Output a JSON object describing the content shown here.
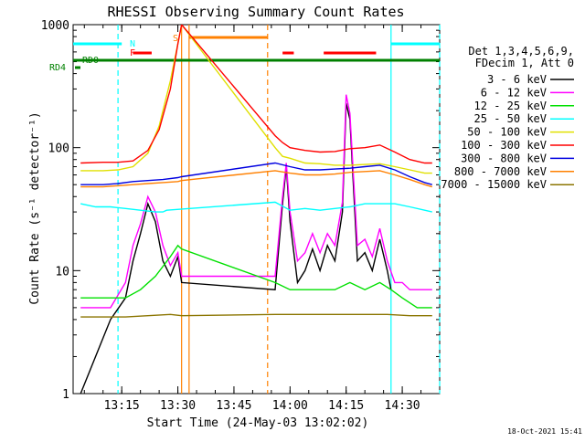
{
  "colors": {
    "background": "#ffffff",
    "axis": "#000000",
    "s_3_6": "#000000",
    "s_6_12": "#ff00ff",
    "s_12_25": "#00e000",
    "s_25_50": "#00ffff",
    "s_50_100": "#e0e000",
    "s_100_300": "#ff0000",
    "s_300_800": "#0000e0",
    "s_800_7000": "#ff8000",
    "s_7000_15000": "#8b7500",
    "flag_n": "#00ffff",
    "flag_f": "#ff0000",
    "flag_s": "#ff8000",
    "flag_rd": "#008000"
  },
  "chart_data": {
    "type": "line",
    "title": "RHESSI Observing Summary Count Rates",
    "xlabel": "Start Time (24-May-03 13:02:02)",
    "ylabel": "Count Rate (s⁻¹ detector⁻¹)",
    "yscale": "log",
    "xlim": [
      "13:02",
      "14:40"
    ],
    "ylim": [
      1,
      1000
    ],
    "xticks": [
      "13:15",
      "13:30",
      "13:45",
      "14:00",
      "14:15",
      "14:30"
    ],
    "yticks": [
      "1",
      "10",
      "100",
      "1000"
    ],
    "legend_placement": "right",
    "legend_header": [
      "Det 1,3,4,5,6,9,",
      "FDecim 1, Att 0"
    ],
    "footer_date": "18-Oct-2021 15:41",
    "flags": {
      "n_label": "N",
      "f_label": "F",
      "s_label": "S",
      "rd0_label": "RD0",
      "rd4_label": "RD4",
      "n_intervals": [
        [
          "13:02",
          "13:15"
        ],
        [
          "14:27",
          "14:40"
        ]
      ],
      "f_intervals": [
        [
          "13:18",
          "13:23"
        ],
        [
          "13:58",
          "14:01"
        ],
        [
          "14:09",
          "14:23"
        ]
      ],
      "s_intervals": [
        [
          "13:33",
          "13:54"
        ]
      ],
      "rd0_interval": [
        "13:02",
        "14:40"
      ]
    },
    "vlines": [
      {
        "t": "13:14",
        "color": "#00ffff",
        "style": "dashed"
      },
      {
        "t": "13:31",
        "color": "#ff8000",
        "style": "solid"
      },
      {
        "t": "13:33",
        "color": "#ff8000",
        "style": "solid"
      },
      {
        "t": "13:54",
        "color": "#ff8000",
        "style": "dashed"
      },
      {
        "t": "14:27",
        "color": "#00ffff",
        "style": "solid"
      },
      {
        "t": "14:40",
        "color": "#00ffff",
        "style": "dashed"
      }
    ],
    "series": [
      {
        "name": "3 - 6 keV",
        "key": "s_3_6",
        "x": [
          "13:04",
          "13:12",
          "13:16",
          "13:18",
          "13:20",
          "13:22",
          "13:24",
          "13:26",
          "13:28",
          "13:30",
          "13:31",
          "13:56",
          "13:58",
          "13:59",
          "14:00",
          "14:02",
          "14:04",
          "14:06",
          "14:08",
          "14:10",
          "14:12",
          "14:14",
          "14:15",
          "14:16",
          "14:18",
          "14:20",
          "14:22",
          "14:24",
          "14:26",
          "14:27"
        ],
        "y": [
          1,
          4,
          6,
          12,
          20,
          35,
          25,
          12,
          9,
          13,
          8,
          7,
          35,
          70,
          25,
          8,
          10,
          15,
          10,
          16,
          12,
          30,
          230,
          170,
          12,
          14,
          10,
          18,
          10,
          7
        ]
      },
      {
        "name": "6 - 12 keV",
        "key": "s_6_12",
        "x": [
          "13:04",
          "13:12",
          "13:16",
          "13:18",
          "13:20",
          "13:22",
          "13:24",
          "13:26",
          "13:28",
          "13:30",
          "13:31",
          "13:56",
          "13:58",
          "13:59",
          "14:00",
          "14:02",
          "14:04",
          "14:06",
          "14:08",
          "14:10",
          "14:12",
          "14:14",
          "14:15",
          "14:16",
          "14:18",
          "14:20",
          "14:22",
          "14:24",
          "14:26",
          "14:28",
          "14:30",
          "14:32",
          "14:34",
          "14:36",
          "14:38"
        ],
        "y": [
          5,
          5,
          8,
          16,
          24,
          40,
          30,
          16,
          11,
          14,
          9,
          9,
          40,
          75,
          30,
          12,
          14,
          20,
          14,
          20,
          16,
          36,
          270,
          190,
          16,
          18,
          13,
          22,
          12,
          8,
          8,
          7,
          7,
          7,
          7
        ]
      },
      {
        "name": "12 - 25 keV",
        "key": "s_12_25",
        "x": [
          "13:04",
          "13:12",
          "13:16",
          "13:20",
          "13:24",
          "13:28",
          "13:30",
          "13:31",
          "13:56",
          "14:00",
          "14:04",
          "14:08",
          "14:12",
          "14:16",
          "14:20",
          "14:24",
          "14:27",
          "14:30",
          "14:34",
          "14:38"
        ],
        "y": [
          6,
          6,
          6,
          7,
          9,
          13,
          16,
          15,
          8,
          7,
          7,
          7,
          7,
          8,
          7,
          8,
          7,
          6,
          5,
          5
        ]
      },
      {
        "name": "25 - 50 keV",
        "key": "s_25_50",
        "x": [
          "13:04",
          "13:08",
          "13:12",
          "13:16",
          "13:20",
          "13:24",
          "13:26",
          "13:27",
          "13:56",
          "14:00",
          "14:04",
          "14:08",
          "14:12",
          "14:16",
          "14:20",
          "14:24",
          "14:28",
          "14:32",
          "14:36",
          "14:38"
        ],
        "y": [
          35,
          33,
          33,
          32,
          31,
          30,
          30,
          31,
          36,
          31,
          32,
          31,
          32,
          33,
          35,
          35,
          35,
          33,
          31,
          30
        ]
      },
      {
        "name": "50 - 100 keV",
        "key": "s_50_100",
        "x": [
          "13:04",
          "13:10",
          "13:14",
          "13:18",
          "13:22",
          "13:25",
          "13:28",
          "13:30",
          "13:31",
          "13:56",
          "13:58",
          "14:00",
          "14:04",
          "14:08",
          "14:12",
          "14:16",
          "14:20",
          "14:24",
          "14:28",
          "14:32",
          "14:36",
          "14:38"
        ],
        "y": [
          65,
          65,
          66,
          70,
          90,
          150,
          350,
          700,
          1000,
          100,
          85,
          82,
          75,
          74,
          72,
          72,
          73,
          74,
          70,
          66,
          62,
          62
        ]
      },
      {
        "name": "100 - 300 keV",
        "key": "s_100_300",
        "x": [
          "13:04",
          "13:10",
          "13:14",
          "13:18",
          "13:22",
          "13:25",
          "13:28",
          "13:30",
          "13:31",
          "13:56",
          "13:58",
          "14:00",
          "14:04",
          "14:08",
          "14:12",
          "14:16",
          "14:20",
          "14:24",
          "14:28",
          "14:32",
          "14:36",
          "14:38"
        ],
        "y": [
          75,
          76,
          76,
          78,
          95,
          140,
          300,
          700,
          1000,
          125,
          110,
          100,
          95,
          92,
          93,
          98,
          100,
          105,
          92,
          80,
          75,
          75
        ]
      },
      {
        "name": "300 - 800 keV",
        "key": "s_300_800",
        "x": [
          "13:04",
          "13:10",
          "13:14",
          "13:18",
          "13:22",
          "13:26",
          "13:30",
          "13:31",
          "13:56",
          "14:00",
          "14:04",
          "14:08",
          "14:12",
          "14:16",
          "14:20",
          "14:24",
          "14:28",
          "14:32",
          "14:36",
          "14:38"
        ],
        "y": [
          50,
          50,
          51,
          53,
          54,
          55,
          57,
          58,
          75,
          70,
          66,
          66,
          67,
          68,
          70,
          72,
          66,
          58,
          52,
          50
        ]
      },
      {
        "name": "800 - 7000 keV",
        "key": "s_800_7000",
        "x": [
          "13:04",
          "13:10",
          "13:14",
          "13:18",
          "13:22",
          "13:26",
          "13:30",
          "13:31",
          "13:56",
          "14:00",
          "14:04",
          "14:08",
          "14:12",
          "14:16",
          "14:20",
          "14:24",
          "14:28",
          "14:32",
          "14:36",
          "14:38"
        ],
        "y": [
          48,
          48,
          49,
          50,
          51,
          52,
          53,
          54,
          65,
          62,
          60,
          60,
          61,
          63,
          64,
          65,
          60,
          55,
          50,
          48
        ]
      },
      {
        "name": "7000 - 15000 keV",
        "key": "s_7000_15000",
        "x": [
          "13:04",
          "13:10",
          "13:16",
          "13:22",
          "13:28",
          "13:31",
          "13:56",
          "14:02",
          "14:08",
          "14:14",
          "14:20",
          "14:26",
          "14:32",
          "14:38"
        ],
        "y": [
          4.2,
          4.2,
          4.2,
          4.3,
          4.4,
          4.3,
          4.4,
          4.4,
          4.4,
          4.4,
          4.4,
          4.4,
          4.3,
          4.3
        ]
      }
    ]
  }
}
